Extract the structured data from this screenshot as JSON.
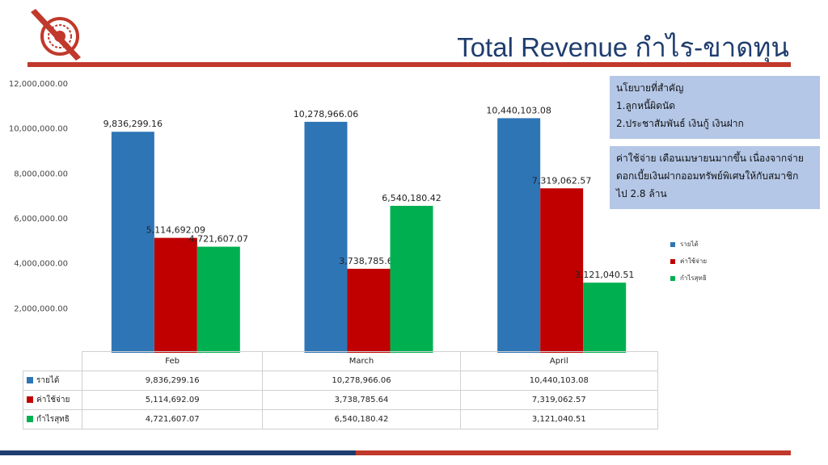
{
  "header": {
    "title": "Total Revenue กำไร-ขาดทุน"
  },
  "colors": {
    "revenue": "#2e75b6",
    "expense": "#c00000",
    "profit": "#00b050",
    "accent_red": "#c0392b",
    "accent_navy": "#1f3d6e",
    "note_bg": "#b4c7e7"
  },
  "notes": {
    "policy_lines": [
      "นโยบายที่สำคัญ",
      "1.ลูกหนี้ผิดนัด",
      "2.ประชาสัมพันธ์ เงินกู้ เงินฝาก"
    ],
    "expense_lines": [
      "ค่าใช้จ่าย เดือนเมษายนมากขึ้น เนื่องจากจ่าย",
      "ดอกเบี้ยเงินฝากออมทรัพย์พิเศษให้กับสมาชิก",
      "ไป 2.8 ล้าน"
    ]
  },
  "chart_data": {
    "type": "bar",
    "categories": [
      "Feb",
      "March",
      "April"
    ],
    "series": [
      {
        "name": "รายได้",
        "values": [
          9836299.16,
          10278966.06,
          10440103.08
        ],
        "labels": [
          "9,836,299.16",
          "10,278,966.06",
          "10,440,103.08"
        ]
      },
      {
        "name": "ค่าใช้จ่าย",
        "values": [
          5114692.09,
          3738785.64,
          7319062.57
        ],
        "labels": [
          "5,114,692.09",
          "3,738,785.64",
          "7,319,062.57"
        ]
      },
      {
        "name": "กำไรสุทธิ",
        "values": [
          4721607.07,
          6540180.42,
          3121040.51
        ],
        "labels": [
          "4,721,607.07",
          "6,540,180.42",
          "3,121,040.51"
        ]
      }
    ],
    "ylim": [
      0,
      12000000
    ],
    "yticks": [
      "-",
      "2,000,000.00",
      "4,000,000.00",
      "6,000,000.00",
      "8,000,000.00",
      "10,000,000.00",
      "12,000,000.00"
    ],
    "legend": "right",
    "data_table": true
  }
}
